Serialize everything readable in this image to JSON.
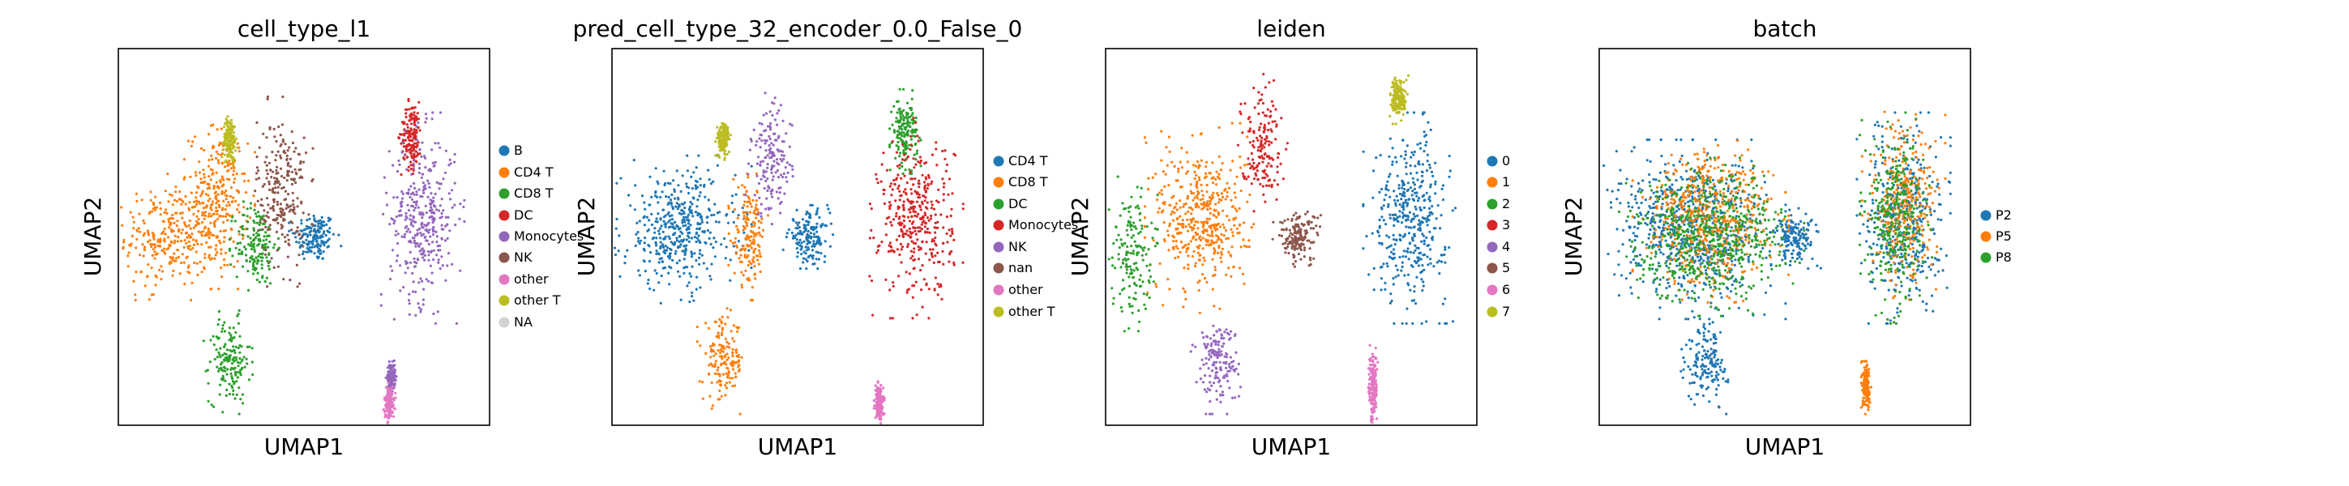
{
  "figure": {
    "panels": [
      {
        "title": "cell_type_l1",
        "xlabel": "UMAP1",
        "ylabel": "UMAP2",
        "legend": [
          {
            "label": "B",
            "color": "#1f77b4"
          },
          {
            "label": "CD4 T",
            "color": "#ff7f0e"
          },
          {
            "label": "CD8 T",
            "color": "#2ca02c"
          },
          {
            "label": "DC",
            "color": "#d62728"
          },
          {
            "label": "Monocytes",
            "color": "#9467bd"
          },
          {
            "label": "NK",
            "color": "#8c564b"
          },
          {
            "label": "other",
            "color": "#e377c2"
          },
          {
            "label": "other T",
            "color": "#bcbd22"
          },
          {
            "label": "NA",
            "color": "#d3d3d3"
          }
        ]
      },
      {
        "title": "pred_cell_type_32_encoder_0.0_False_0",
        "xlabel": "UMAP1",
        "ylabel": "UMAP2",
        "legend": [
          {
            "label": "CD4 T",
            "color": "#1f77b4"
          },
          {
            "label": "CD8 T",
            "color": "#ff7f0e"
          },
          {
            "label": "DC",
            "color": "#2ca02c"
          },
          {
            "label": "Monocytes",
            "color": "#d62728"
          },
          {
            "label": "NK",
            "color": "#9467bd"
          },
          {
            "label": "nan",
            "color": "#8c564b"
          },
          {
            "label": "other",
            "color": "#e377c2"
          },
          {
            "label": "other T",
            "color": "#bcbd22"
          }
        ]
      },
      {
        "title": "leiden",
        "xlabel": "UMAP1",
        "ylabel": "UMAP2",
        "legend": [
          {
            "label": "0",
            "color": "#1f77b4"
          },
          {
            "label": "1",
            "color": "#ff7f0e"
          },
          {
            "label": "2",
            "color": "#2ca02c"
          },
          {
            "label": "3",
            "color": "#d62728"
          },
          {
            "label": "4",
            "color": "#9467bd"
          },
          {
            "label": "5",
            "color": "#8c564b"
          },
          {
            "label": "6",
            "color": "#e377c2"
          },
          {
            "label": "7",
            "color": "#bcbd22"
          }
        ]
      },
      {
        "title": "batch",
        "xlabel": "UMAP1",
        "ylabel": "UMAP2",
        "legend": [
          {
            "label": "P2",
            "color": "#1f77b4"
          },
          {
            "label": "P5",
            "color": "#ff7f0e"
          },
          {
            "label": "P8",
            "color": "#2ca02c"
          }
        ]
      }
    ]
  },
  "chart_data": [
    {
      "type": "scatter",
      "title": "cell_type_l1",
      "xlabel": "UMAP1",
      "ylabel": "UMAP2",
      "grid": false,
      "legend_position": "right",
      "series": [
        {
          "name": "B",
          "color": "#1f77b4",
          "clusters": [
            {
              "x": 0.53,
              "y": 0.5,
              "rx": 0.05,
              "ry": 0.06
            }
          ]
        },
        {
          "name": "CD4 T",
          "color": "#ff7f0e",
          "clusters": [
            {
              "x": 0.14,
              "y": 0.5,
              "rx": 0.11,
              "ry": 0.12
            },
            {
              "x": 0.27,
              "y": 0.6,
              "rx": 0.07,
              "ry": 0.17
            }
          ]
        },
        {
          "name": "CD8 T",
          "color": "#2ca02c",
          "clusters": [
            {
              "x": 0.3,
              "y": 0.17,
              "rx": 0.05,
              "ry": 0.1
            },
            {
              "x": 0.37,
              "y": 0.48,
              "rx": 0.05,
              "ry": 0.1
            }
          ]
        },
        {
          "name": "DC",
          "color": "#d62728",
          "clusters": [
            {
              "x": 0.79,
              "y": 0.77,
              "rx": 0.025,
              "ry": 0.08
            }
          ]
        },
        {
          "name": "Monocytes",
          "color": "#9467bd",
          "clusters": [
            {
              "x": 0.82,
              "y": 0.55,
              "rx": 0.08,
              "ry": 0.2
            },
            {
              "x": 0.735,
              "y": 0.13,
              "rx": 0.01,
              "ry": 0.03
            }
          ]
        },
        {
          "name": "NK",
          "color": "#8c564b",
          "clusters": [
            {
              "x": 0.44,
              "y": 0.62,
              "rx": 0.06,
              "ry": 0.18
            }
          ]
        },
        {
          "name": "other",
          "color": "#e377c2",
          "clusters": [
            {
              "x": 0.73,
              "y": 0.06,
              "rx": 0.012,
              "ry": 0.04
            }
          ]
        },
        {
          "name": "other T",
          "color": "#bcbd22",
          "clusters": [
            {
              "x": 0.3,
              "y": 0.76,
              "rx": 0.015,
              "ry": 0.05
            }
          ]
        }
      ]
    },
    {
      "type": "scatter",
      "title": "pred_cell_type_32_encoder_0.0_False_0",
      "xlabel": "UMAP1",
      "ylabel": "UMAP2",
      "grid": false,
      "legend_position": "right",
      "series": [
        {
          "name": "CD4 T",
          "color": "#1f77b4",
          "clusters": [
            {
              "x": 0.18,
              "y": 0.52,
              "rx": 0.14,
              "ry": 0.14
            },
            {
              "x": 0.53,
              "y": 0.5,
              "rx": 0.05,
              "ry": 0.06
            }
          ]
        },
        {
          "name": "CD8 T",
          "color": "#ff7f0e",
          "clusters": [
            {
              "x": 0.3,
              "y": 0.17,
              "rx": 0.05,
              "ry": 0.1
            },
            {
              "x": 0.37,
              "y": 0.5,
              "rx": 0.04,
              "ry": 0.12
            }
          ]
        },
        {
          "name": "DC",
          "color": "#2ca02c",
          "clusters": [
            {
              "x": 0.79,
              "y": 0.78,
              "rx": 0.03,
              "ry": 0.08
            }
          ]
        },
        {
          "name": "Monocytes",
          "color": "#d62728",
          "clusters": [
            {
              "x": 0.82,
              "y": 0.55,
              "rx": 0.09,
              "ry": 0.19
            }
          ]
        },
        {
          "name": "NK",
          "color": "#9467bd",
          "clusters": [
            {
              "x": 0.43,
              "y": 0.7,
              "rx": 0.05,
              "ry": 0.13
            }
          ]
        },
        {
          "name": "other",
          "color": "#e377c2",
          "clusters": [
            {
              "x": 0.72,
              "y": 0.06,
              "rx": 0.01,
              "ry": 0.04
            }
          ]
        },
        {
          "name": "other T",
          "color": "#bcbd22",
          "clusters": [
            {
              "x": 0.3,
              "y": 0.76,
              "rx": 0.015,
              "ry": 0.04
            }
          ]
        }
      ]
    },
    {
      "type": "scatter",
      "title": "leiden",
      "xlabel": "UMAP1",
      "ylabel": "UMAP2",
      "grid": false,
      "legend_position": "right",
      "series": [
        {
          "name": "0",
          "color": "#1f77b4",
          "clusters": [
            {
              "x": 0.82,
              "y": 0.55,
              "rx": 0.09,
              "ry": 0.2
            }
          ]
        },
        {
          "name": "1",
          "color": "#ff7f0e",
          "clusters": [
            {
              "x": 0.26,
              "y": 0.55,
              "rx": 0.11,
              "ry": 0.18
            }
          ]
        },
        {
          "name": "2",
          "color": "#2ca02c",
          "clusters": [
            {
              "x": 0.07,
              "y": 0.46,
              "rx": 0.05,
              "ry": 0.15
            }
          ]
        },
        {
          "name": "3",
          "color": "#d62728",
          "clusters": [
            {
              "x": 0.42,
              "y": 0.75,
              "rx": 0.05,
              "ry": 0.13
            }
          ]
        },
        {
          "name": "4",
          "color": "#9467bd",
          "clusters": [
            {
              "x": 0.3,
              "y": 0.17,
              "rx": 0.05,
              "ry": 0.1
            }
          ]
        },
        {
          "name": "5",
          "color": "#8c564b",
          "clusters": [
            {
              "x": 0.52,
              "y": 0.5,
              "rx": 0.05,
              "ry": 0.06
            }
          ]
        },
        {
          "name": "6",
          "color": "#e377c2",
          "clusters": [
            {
              "x": 0.72,
              "y": 0.1,
              "rx": 0.01,
              "ry": 0.08
            }
          ]
        },
        {
          "name": "7",
          "color": "#bcbd22",
          "clusters": [
            {
              "x": 0.79,
              "y": 0.87,
              "rx": 0.02,
              "ry": 0.05
            }
          ]
        }
      ]
    },
    {
      "type": "scatter",
      "title": "batch",
      "xlabel": "UMAP1",
      "ylabel": "UMAP2",
      "grid": false,
      "legend_position": "right",
      "series": [
        {
          "name": "P2",
          "color": "#1f77b4",
          "clusters": [
            {
              "x": 0.25,
              "y": 0.52,
              "rx": 0.18,
              "ry": 0.17
            },
            {
              "x": 0.82,
              "y": 0.55,
              "rx": 0.09,
              "ry": 0.2
            },
            {
              "x": 0.29,
              "y": 0.17,
              "rx": 0.05,
              "ry": 0.1
            },
            {
              "x": 0.53,
              "y": 0.5,
              "rx": 0.05,
              "ry": 0.06
            }
          ]
        },
        {
          "name": "P5",
          "color": "#ff7f0e",
          "clusters": [
            {
              "x": 0.3,
              "y": 0.55,
              "rx": 0.15,
              "ry": 0.16
            },
            {
              "x": 0.82,
              "y": 0.58,
              "rx": 0.08,
              "ry": 0.18
            },
            {
              "x": 0.72,
              "y": 0.1,
              "rx": 0.01,
              "ry": 0.05
            }
          ]
        },
        {
          "name": "P8",
          "color": "#2ca02c",
          "clusters": [
            {
              "x": 0.3,
              "y": 0.5,
              "rx": 0.18,
              "ry": 0.15
            },
            {
              "x": 0.8,
              "y": 0.55,
              "rx": 0.07,
              "ry": 0.2
            }
          ]
        }
      ]
    }
  ]
}
